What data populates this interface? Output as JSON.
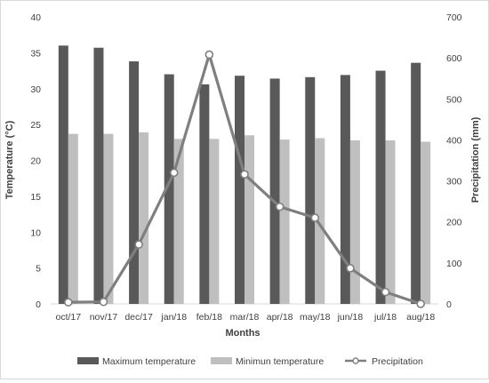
{
  "chart_data": {
    "type": "bar",
    "categories": [
      "oct/17",
      "nov/17",
      "dec/17",
      "jan/18",
      "feb/18",
      "mar/18",
      "apr/18",
      "may/18",
      "jun/18",
      "jul/18",
      "aug/18"
    ],
    "series": [
      {
        "name": "Maximum temperature",
        "kind": "bar",
        "axis": "left",
        "color": "#595959",
        "values": [
          36.0,
          35.7,
          33.8,
          32.0,
          30.6,
          31.8,
          31.4,
          31.6,
          31.9,
          32.5,
          33.6
        ]
      },
      {
        "name": "Minimun temperature",
        "kind": "bar",
        "axis": "left",
        "color": "#bfbfbf",
        "values": [
          23.7,
          23.7,
          23.9,
          23.0,
          23.0,
          23.5,
          22.9,
          23.1,
          22.8,
          22.8,
          22.6
        ]
      },
      {
        "name": "Precipitation",
        "kind": "line",
        "axis": "right",
        "color": "#7f7f7f",
        "values": [
          4,
          5,
          145,
          320,
          608,
          316,
          237,
          210,
          87,
          29,
          0
        ]
      }
    ],
    "xlabel": "Months",
    "ylabel": "Temperature (°C)",
    "y2label": "Precipitation (mm)",
    "ylim": [
      0,
      40
    ],
    "y2lim": [
      0,
      700
    ],
    "yticks": [
      "0",
      "5",
      "10",
      "15",
      "20",
      "25",
      "30",
      "35",
      "40"
    ],
    "y2ticks": [
      "0",
      "100",
      "200",
      "300",
      "400",
      "500",
      "600",
      "700"
    ],
    "grid": false,
    "legend_position": "bottom"
  }
}
